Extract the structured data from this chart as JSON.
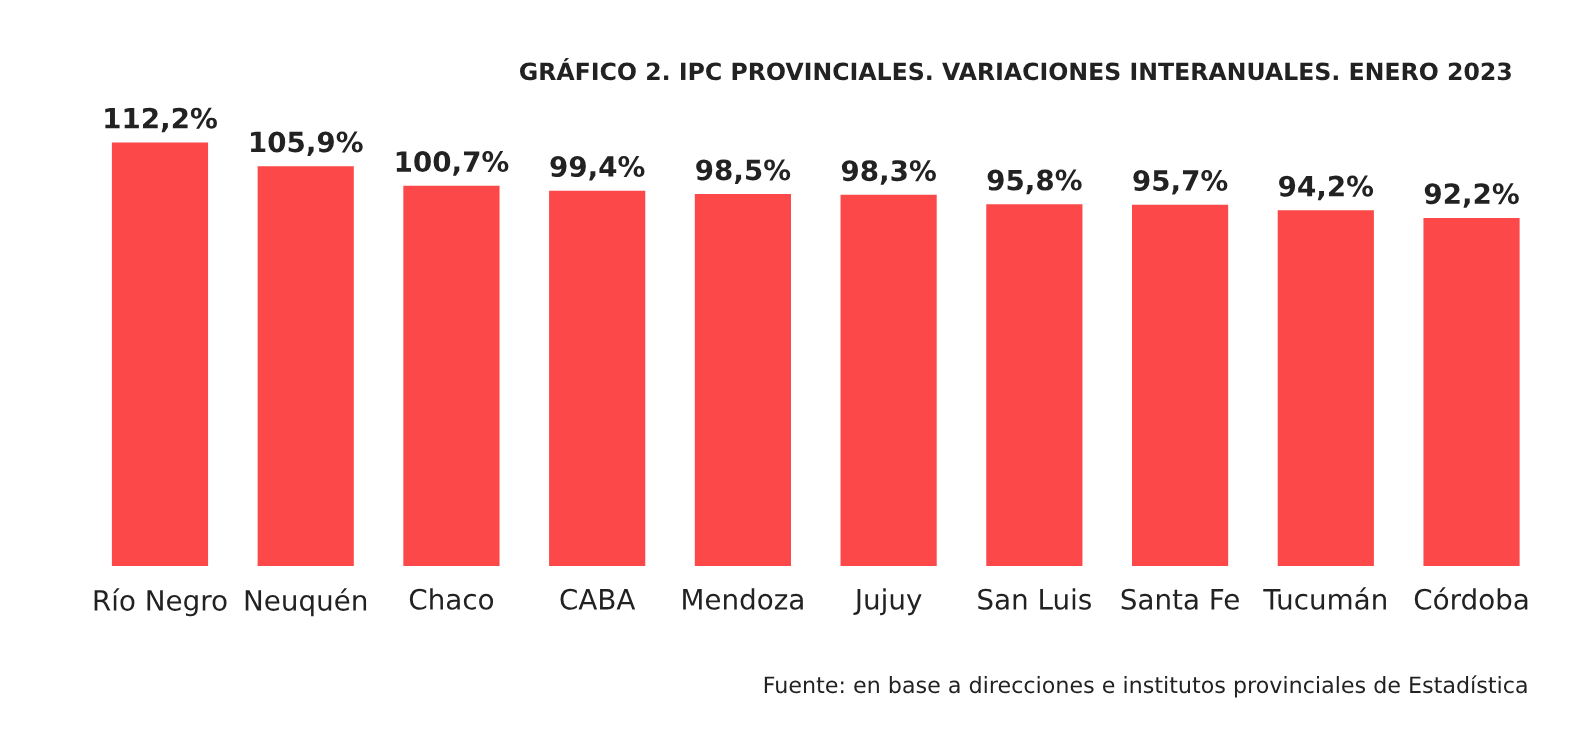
{
  "chart_data": {
    "type": "bar",
    "title": "GRÁFICO 2. IPC PROVINCIALES. VARIACIONES INTERANUALES. ENERO 2023",
    "categories": [
      "Río Negro",
      "Neuquén",
      "Chaco",
      "CABA",
      "Mendoza",
      "Jujuy",
      "San Luis",
      "Santa Fe",
      "Tucumán",
      "Córdoba"
    ],
    "values": [
      112.2,
      105.9,
      100.7,
      99.4,
      98.5,
      98.3,
      95.8,
      95.7,
      94.2,
      92.2
    ],
    "value_labels": [
      "112,2%",
      "105,9%",
      "100,7%",
      "99,4%",
      "98,5%",
      "98,3%",
      "95,8%",
      "95,7%",
      "94,2%",
      "92,2%"
    ],
    "color": "#fc4848",
    "grid": false,
    "legend": false,
    "tick_labels": "x",
    "annotations": [
      "Fuente: en base a direcciones e institutos provinciales de Estadística"
    ]
  }
}
